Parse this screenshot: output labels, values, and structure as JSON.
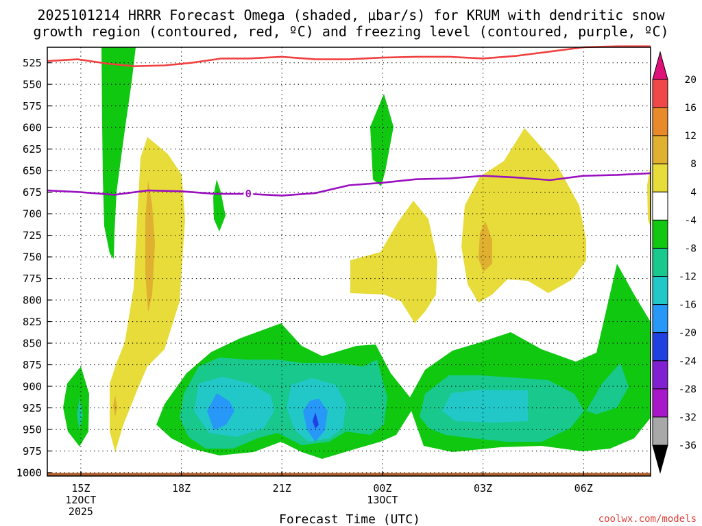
{
  "chart_data": {
    "type": "contour",
    "title_lines": [
      "2025101214 HRRR Forecast Omega (shaded, μbar/s) for KRUM with dendritic snow",
      "growth region (contoured, red, ºC) and freezing level (contoured, purple, ºC)"
    ],
    "xlabel": "Forecast Time (UTC)",
    "credit": "coolwx.com/models",
    "x_ticks": [
      {
        "hour": 15,
        "lines": [
          "15Z",
          "12OCT",
          "2025"
        ]
      },
      {
        "hour": 18,
        "lines": [
          "18Z"
        ]
      },
      {
        "hour": 21,
        "lines": [
          "21Z"
        ]
      },
      {
        "hour": 24,
        "lines": [
          "00Z",
          "13OCT"
        ]
      },
      {
        "hour": 27,
        "lines": [
          "03Z"
        ]
      },
      {
        "hour": 30,
        "lines": [
          "06Z"
        ]
      }
    ],
    "x_range_hours": [
      14.0,
      32.0
    ],
    "y_ticks": [
      525,
      550,
      575,
      600,
      625,
      650,
      675,
      700,
      725,
      750,
      775,
      800,
      825,
      850,
      875,
      900,
      925,
      950,
      975,
      1000
    ],
    "y_range_hpa": [
      507,
      1004
    ],
    "colorbar": {
      "labels": [
        "20",
        "16",
        "12",
        "8",
        "4",
        "-4",
        "-8",
        "-12",
        "-16",
        "-20",
        "-24",
        "-28",
        "-32",
        "-36"
      ],
      "bands": [
        {
          "range": "16 to 20",
          "color": "#f04848"
        },
        {
          "range": "12 to 16",
          "color": "#e88a2a"
        },
        {
          "range": "8 to 12",
          "color": "#e0b030"
        },
        {
          "range": "4 to 8",
          "color": "#e8dc3a"
        },
        {
          "range": "-4 to 4",
          "color": "#ffffff"
        },
        {
          "range": "-8 to -4",
          "color": "#10c810"
        },
        {
          "range": "-12 to -8",
          "color": "#18c88c"
        },
        {
          "range": "-16 to -12",
          "color": "#22c8c8"
        },
        {
          "range": "-20 to -16",
          "color": "#2898f8"
        },
        {
          "range": "-24 to -20",
          "color": "#2040e0"
        },
        {
          "range": "-28 to -24",
          "color": "#8020d0"
        },
        {
          "range": "-32 to -28",
          "color": "#a818c8"
        },
        {
          "range": "-36 to -32",
          "color": "#a8a8a8"
        }
      ],
      "top_arrow_color": "#e0107a",
      "bottom_arrow_color": "#000000"
    },
    "dgz_top_line": {
      "label": "dendritic snow growth region (-12 ºC)",
      "color": "#f04040",
      "points": [
        [
          14.0,
          523
        ],
        [
          14.9,
          521
        ],
        [
          15.8,
          526
        ],
        [
          16.6,
          529
        ],
        [
          17.5,
          528
        ],
        [
          18.3,
          525
        ],
        [
          19.2,
          520
        ],
        [
          20.0,
          520
        ],
        [
          21.0,
          518
        ],
        [
          22.0,
          521
        ],
        [
          23.0,
          521
        ],
        [
          24.0,
          519
        ],
        [
          25.0,
          518
        ],
        [
          26.0,
          518
        ],
        [
          27.0,
          520
        ],
        [
          28.0,
          517
        ],
        [
          29.0,
          512
        ],
        [
          30.0,
          507
        ],
        [
          31.0,
          506
        ],
        [
          32.0,
          506
        ]
      ]
    },
    "freezing_level_line": {
      "label_value": "0",
      "color": "#9a10c0",
      "points": [
        [
          14.0,
          673
        ],
        [
          15.0,
          675
        ],
        [
          16.0,
          678
        ],
        [
          17.0,
          673
        ],
        [
          18.0,
          674
        ],
        [
          19.0,
          677
        ],
        [
          20.0,
          677
        ],
        [
          21.0,
          679
        ],
        [
          22.0,
          676
        ],
        [
          23.0,
          667
        ],
        [
          24.0,
          664
        ],
        [
          25.0,
          660
        ],
        [
          26.0,
          659
        ],
        [
          27.0,
          656
        ],
        [
          28.0,
          658
        ],
        [
          29.0,
          661
        ],
        [
          30.0,
          656
        ],
        [
          31.0,
          655
        ],
        [
          32.0,
          653
        ]
      ]
    },
    "ground_level_hpa": 1002
  }
}
